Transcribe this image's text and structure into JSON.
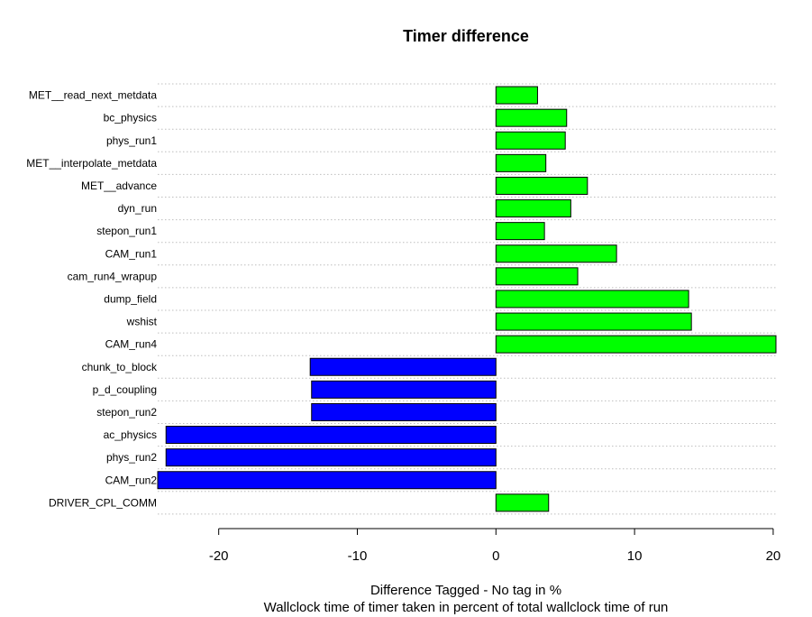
{
  "chart_data": {
    "type": "bar",
    "orientation": "horizontal",
    "title": "Timer difference",
    "xlabel": "Difference Tagged - No tag in %",
    "xlabel_sub": "Wallclock time of timer taken in percent of total wallclock time of run",
    "ylabel": "",
    "xlim": [
      -24.4,
      20.2
    ],
    "xticks": [
      -20,
      -10,
      0,
      10,
      20
    ],
    "grid": "horizontal dotted lines per category",
    "colors": {
      "positive": "#00ff00",
      "negative": "#0000ff",
      "gridline": "#bebebe"
    },
    "categories": [
      "MET__read_next_metdata",
      "bc_physics",
      "phys_run1",
      "MET__interpolate_metdata",
      "MET__advance",
      "dyn_run",
      "stepon_run1",
      "CAM_run1",
      "cam_run4_wrapup",
      "dump_field",
      "wshist",
      "CAM_run4",
      "chunk_to_block",
      "p_d_coupling",
      "stepon_run2",
      "ac_physics",
      "phys_run2",
      "CAM_run2",
      "DRIVER_CPL_COMM"
    ],
    "values": [
      3.0,
      5.1,
      5.0,
      3.6,
      6.6,
      5.4,
      3.5,
      8.7,
      5.9,
      13.9,
      14.1,
      20.2,
      -13.4,
      -13.3,
      -13.3,
      -23.8,
      -23.8,
      -24.4,
      3.8
    ]
  }
}
